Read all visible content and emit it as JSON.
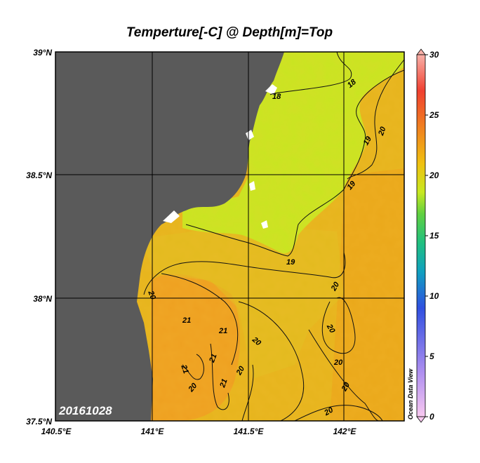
{
  "title": "Temperture[-C] @ Depth[m]=Top",
  "date_label": "20161028",
  "watermark": "Ocean Data View",
  "lat_ticks": [
    "39°N",
    "38.5°N",
    "38°N",
    "37.5°N"
  ],
  "lon_ticks": [
    "140.5°E",
    "141°E",
    "141.5°E",
    "142°E"
  ],
  "colorbar": {
    "ticks": [
      "30",
      "25",
      "20",
      "15",
      "10",
      "5",
      "0"
    ],
    "min": 0,
    "max": 30,
    "colors": [
      "#f8c8f0",
      "#b090f0",
      "#3050e0",
      "#10a0c0",
      "#20c080",
      "#60d040",
      "#c8e820",
      "#f0c010",
      "#f08020",
      "#f04030",
      "#f8b0a8"
    ]
  },
  "contour_labels": [
    {
      "text": "18"
    },
    {
      "text": "18"
    },
    {
      "text": "19"
    },
    {
      "text": "20"
    },
    {
      "text": "19"
    },
    {
      "text": "19"
    },
    {
      "text": "20"
    },
    {
      "text": "20"
    },
    {
      "text": "21"
    },
    {
      "text": "21"
    },
    {
      "text": "20"
    },
    {
      "text": "21"
    },
    {
      "text": "21"
    },
    {
      "text": "21"
    },
    {
      "text": "20"
    },
    {
      "text": "20"
    },
    {
      "text": "20"
    },
    {
      "text": "20"
    },
    {
      "text": "20"
    }
  ],
  "colors": {
    "land": "#5a5a5a",
    "cold_water": "#c8e820",
    "warm_water": "#e8b818",
    "warmest_water": "#f0a018"
  }
}
